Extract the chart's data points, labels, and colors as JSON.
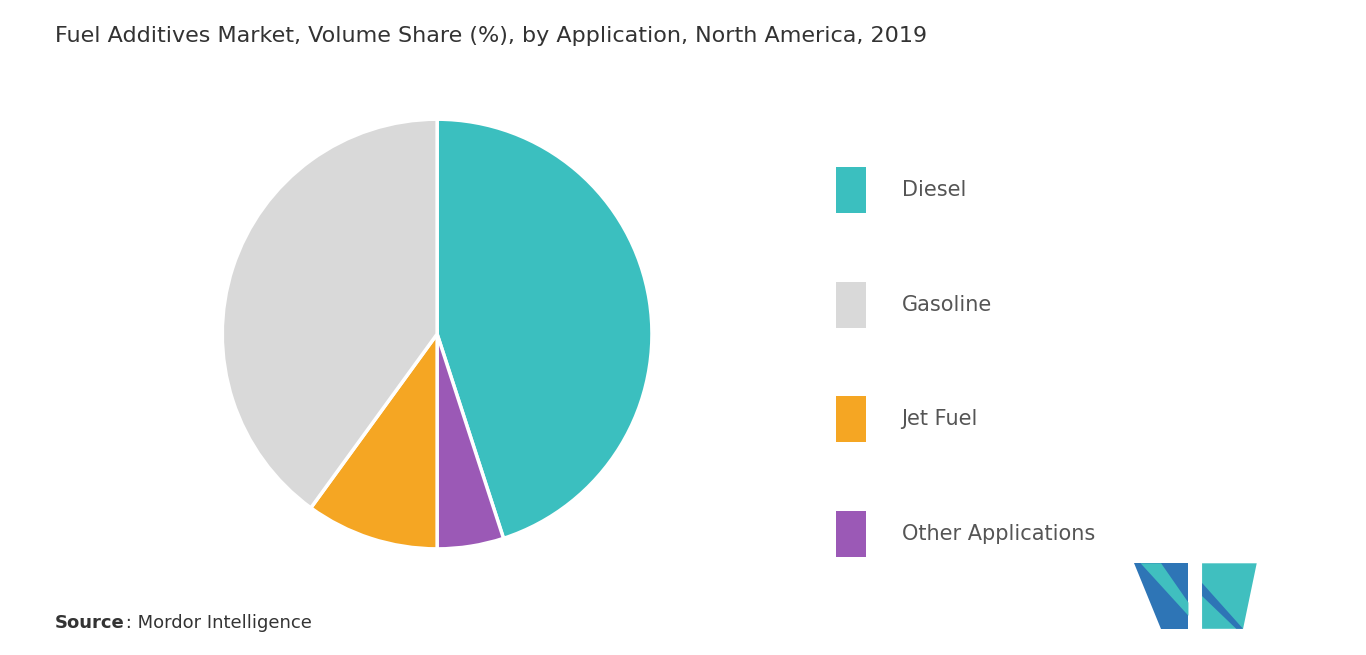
{
  "title": "Fuel Additives Market, Volume Share (%), by Application, North America, 2019",
  "slices": [
    {
      "label": "Diesel",
      "value": 45,
      "color": "#3bbfbf"
    },
    {
      "label": "Other Applications",
      "value": 5,
      "color": "#9b59b6"
    },
    {
      "label": "Jet Fuel",
      "value": 10,
      "color": "#f5a623"
    },
    {
      "label": "Gasoline",
      "value": 40,
      "color": "#d9d9d9"
    }
  ],
  "legend_labels": [
    "Diesel",
    "Gasoline",
    "Jet Fuel",
    "Other Applications"
  ],
  "legend_colors": [
    "#3bbfbf",
    "#d9d9d9",
    "#f5a623",
    "#9b59b6"
  ],
  "source_bold": "Source",
  "source_rest": " : Mordor Intelligence",
  "background_color": "#ffffff",
  "title_fontsize": 16,
  "legend_fontsize": 15,
  "source_fontsize": 13,
  "title_color": "#333333",
  "legend_text_color": "#555555"
}
